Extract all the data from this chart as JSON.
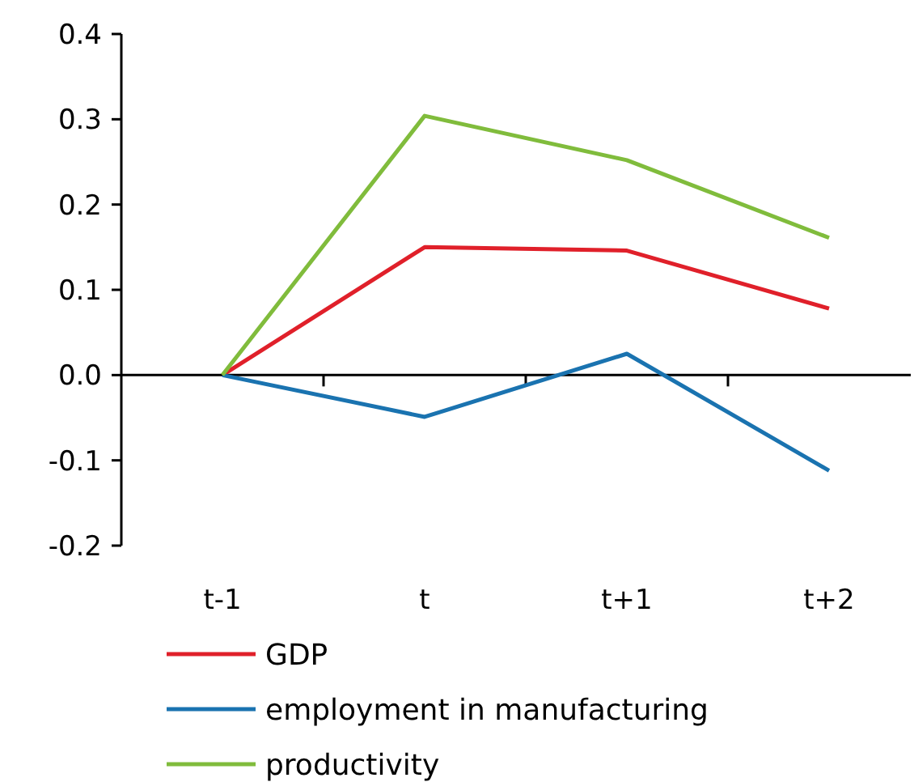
{
  "chart_data": {
    "type": "line",
    "categories": [
      "t-1",
      "t",
      "t+1",
      "t+2"
    ],
    "series": [
      {
        "name": "GDP",
        "color": "#e0202a",
        "values": [
          0,
          0.15,
          0.146,
          0.078
        ]
      },
      {
        "name": "employment in manufacturing",
        "color": "#1a73b0",
        "values": [
          0,
          -0.049,
          0.025,
          -0.112
        ]
      },
      {
        "name": "productivity",
        "color": "#80bc3c",
        "values": [
          0,
          0.304,
          0.252,
          0.161
        ]
      }
    ],
    "ylim": [
      -0.2,
      0.4
    ],
    "yticks": [
      {
        "value": -0.2,
        "label": "-0.2"
      },
      {
        "value": -0.1,
        "label": "-0.1"
      },
      {
        "value": 0,
        "label": "0.0"
      },
      {
        "value": 0.1,
        "label": "0.1"
      },
      {
        "value": 0.2,
        "label": "0.2"
      },
      {
        "value": 0.3,
        "label": "0.3"
      },
      {
        "value": 0.4,
        "label": "0.4"
      }
    ],
    "legend": "bottom",
    "marker": "none",
    "line_style": "solid"
  }
}
